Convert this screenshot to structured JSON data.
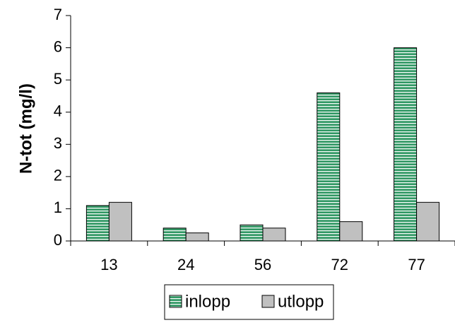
{
  "chart_data": {
    "type": "bar",
    "y_label": "N-tot (mg/l)",
    "categories": [
      "13",
      "24",
      "56",
      "72",
      "77"
    ],
    "series": [
      {
        "name": "inlopp",
        "color": "#339966",
        "values": [
          1.1,
          0.4,
          0.5,
          4.6,
          6.0
        ]
      },
      {
        "name": "utlopp",
        "color": "#c0c0c0",
        "values": [
          1.2,
          0.25,
          0.4,
          0.6,
          1.2
        ]
      }
    ],
    "ylim": [
      0,
      7
    ],
    "yticks": [
      0,
      1,
      2,
      3,
      4,
      5,
      6,
      7
    ],
    "legend": "bottom"
  }
}
